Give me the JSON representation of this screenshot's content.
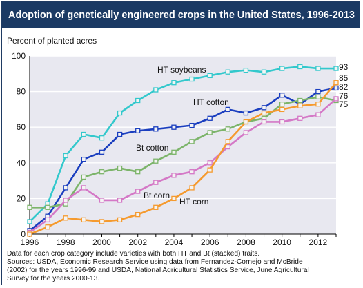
{
  "title": "Adoption of genetically engineered crops in the United States, 1996-2013",
  "notes": {
    "line1": "Data for each crop category include varieties with both HT and Bt (stacked) traits.",
    "line2": "Sources: USDA, Economic Research Service using data from Fernandez-Cornejo and McBride",
    "line3": "(2002) for the years 1996-99 and USDA, National Agricultural Statistics Service, June Agricultural",
    "line4": "Survey for the years 2000-13."
  },
  "chart_data": {
    "type": "line",
    "title": "Adoption of genetically engineered crops in the United States, 1996-2013",
    "ylabel": "Percent of planted acres",
    "xlabel": "",
    "x": [
      1996,
      1997,
      1998,
      1999,
      2000,
      2001,
      2002,
      2003,
      2004,
      2005,
      2006,
      2007,
      2008,
      2009,
      2010,
      2011,
      2012,
      2013
    ],
    "xticks": [
      1996,
      1998,
      2000,
      2002,
      2004,
      2006,
      2008,
      2010,
      2012
    ],
    "yticks": [
      0,
      20,
      40,
      60,
      80,
      100
    ],
    "xlim": [
      1996,
      2013
    ],
    "ylim": [
      0,
      100
    ],
    "grid": true,
    "background": "#e8e8f0",
    "series": [
      {
        "name": "HT soybeans",
        "color": "#33c8cc",
        "end_label": "93",
        "values": [
          7,
          17,
          44,
          56,
          54,
          68,
          75,
          81,
          85,
          87,
          89,
          91,
          92,
          91,
          93,
          94,
          93,
          93
        ]
      },
      {
        "name": "HT cotton",
        "color": "#1a3ebf",
        "end_label": "82",
        "values": [
          2,
          10,
          26,
          42,
          46,
          56,
          58,
          59,
          60,
          61,
          65,
          70,
          68,
          71,
          78,
          73,
          80,
          82
        ]
      },
      {
        "name": "Bt cotton",
        "color": "#7cb46a",
        "end_label": "75",
        "values": [
          15,
          15,
          17,
          32,
          35,
          37,
          35,
          41,
          46,
          52,
          57,
          59,
          63,
          65,
          73,
          75,
          77,
          75
        ]
      },
      {
        "name": "Bt corn",
        "color": "#d478c6",
        "end_label": "76",
        "values": [
          1,
          8,
          19,
          26,
          19,
          19,
          24,
          29,
          33,
          35,
          40,
          49,
          57,
          63,
          63,
          65,
          67,
          76
        ]
      },
      {
        "name": "HT corn",
        "color": "#f59a2e",
        "end_label": "85",
        "values": [
          0,
          4,
          9,
          8,
          7,
          8,
          11,
          15,
          20,
          26,
          36,
          52,
          63,
          68,
          70,
          72,
          73,
          85
        ]
      }
    ]
  }
}
